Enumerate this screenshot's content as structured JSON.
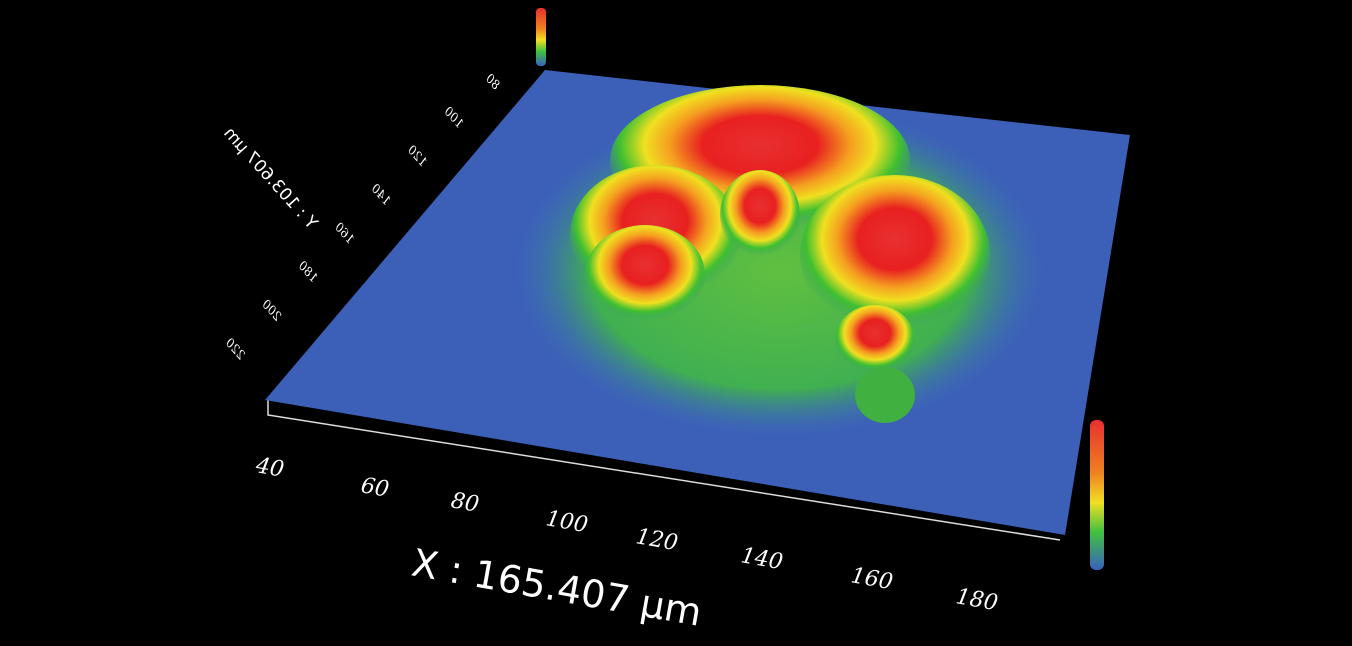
{
  "x_axis": {
    "label": "X : 165.407 µm",
    "ticks": [
      "40",
      "60",
      "80",
      "100",
      "120",
      "140",
      "160",
      "180"
    ]
  },
  "y_axis": {
    "label": "Y : 103.607 µm",
    "ticks": [
      "220",
      "200",
      "180",
      "160",
      "140",
      "120",
      "100",
      "80"
    ]
  }
}
